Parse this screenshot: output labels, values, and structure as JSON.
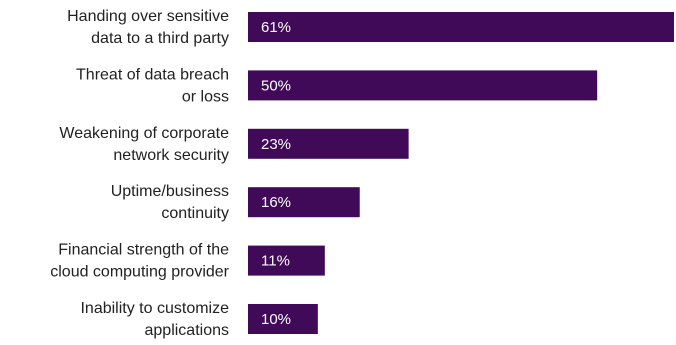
{
  "chart_data": {
    "type": "bar",
    "orientation": "horizontal",
    "categories": [
      [
        "Handing over sensitive",
        "data to a third party"
      ],
      [
        "Threat of data breach",
        "or loss"
      ],
      [
        "Weakening of corporate",
        "network security"
      ],
      [
        "Uptime/business",
        "continuity"
      ],
      [
        "Financial strength of the",
        "cloud computing provider"
      ],
      [
        "Inability to customize",
        "applications"
      ]
    ],
    "values": [
      61,
      50,
      23,
      16,
      11,
      10
    ],
    "value_labels": [
      "61%",
      "50%",
      "23%",
      "16%",
      "11%",
      "10%"
    ],
    "xlim": [
      0,
      61
    ],
    "title": "",
    "xlabel": "",
    "ylabel": "",
    "grid": false,
    "legend": "none",
    "bar_color": "#410a59"
  }
}
